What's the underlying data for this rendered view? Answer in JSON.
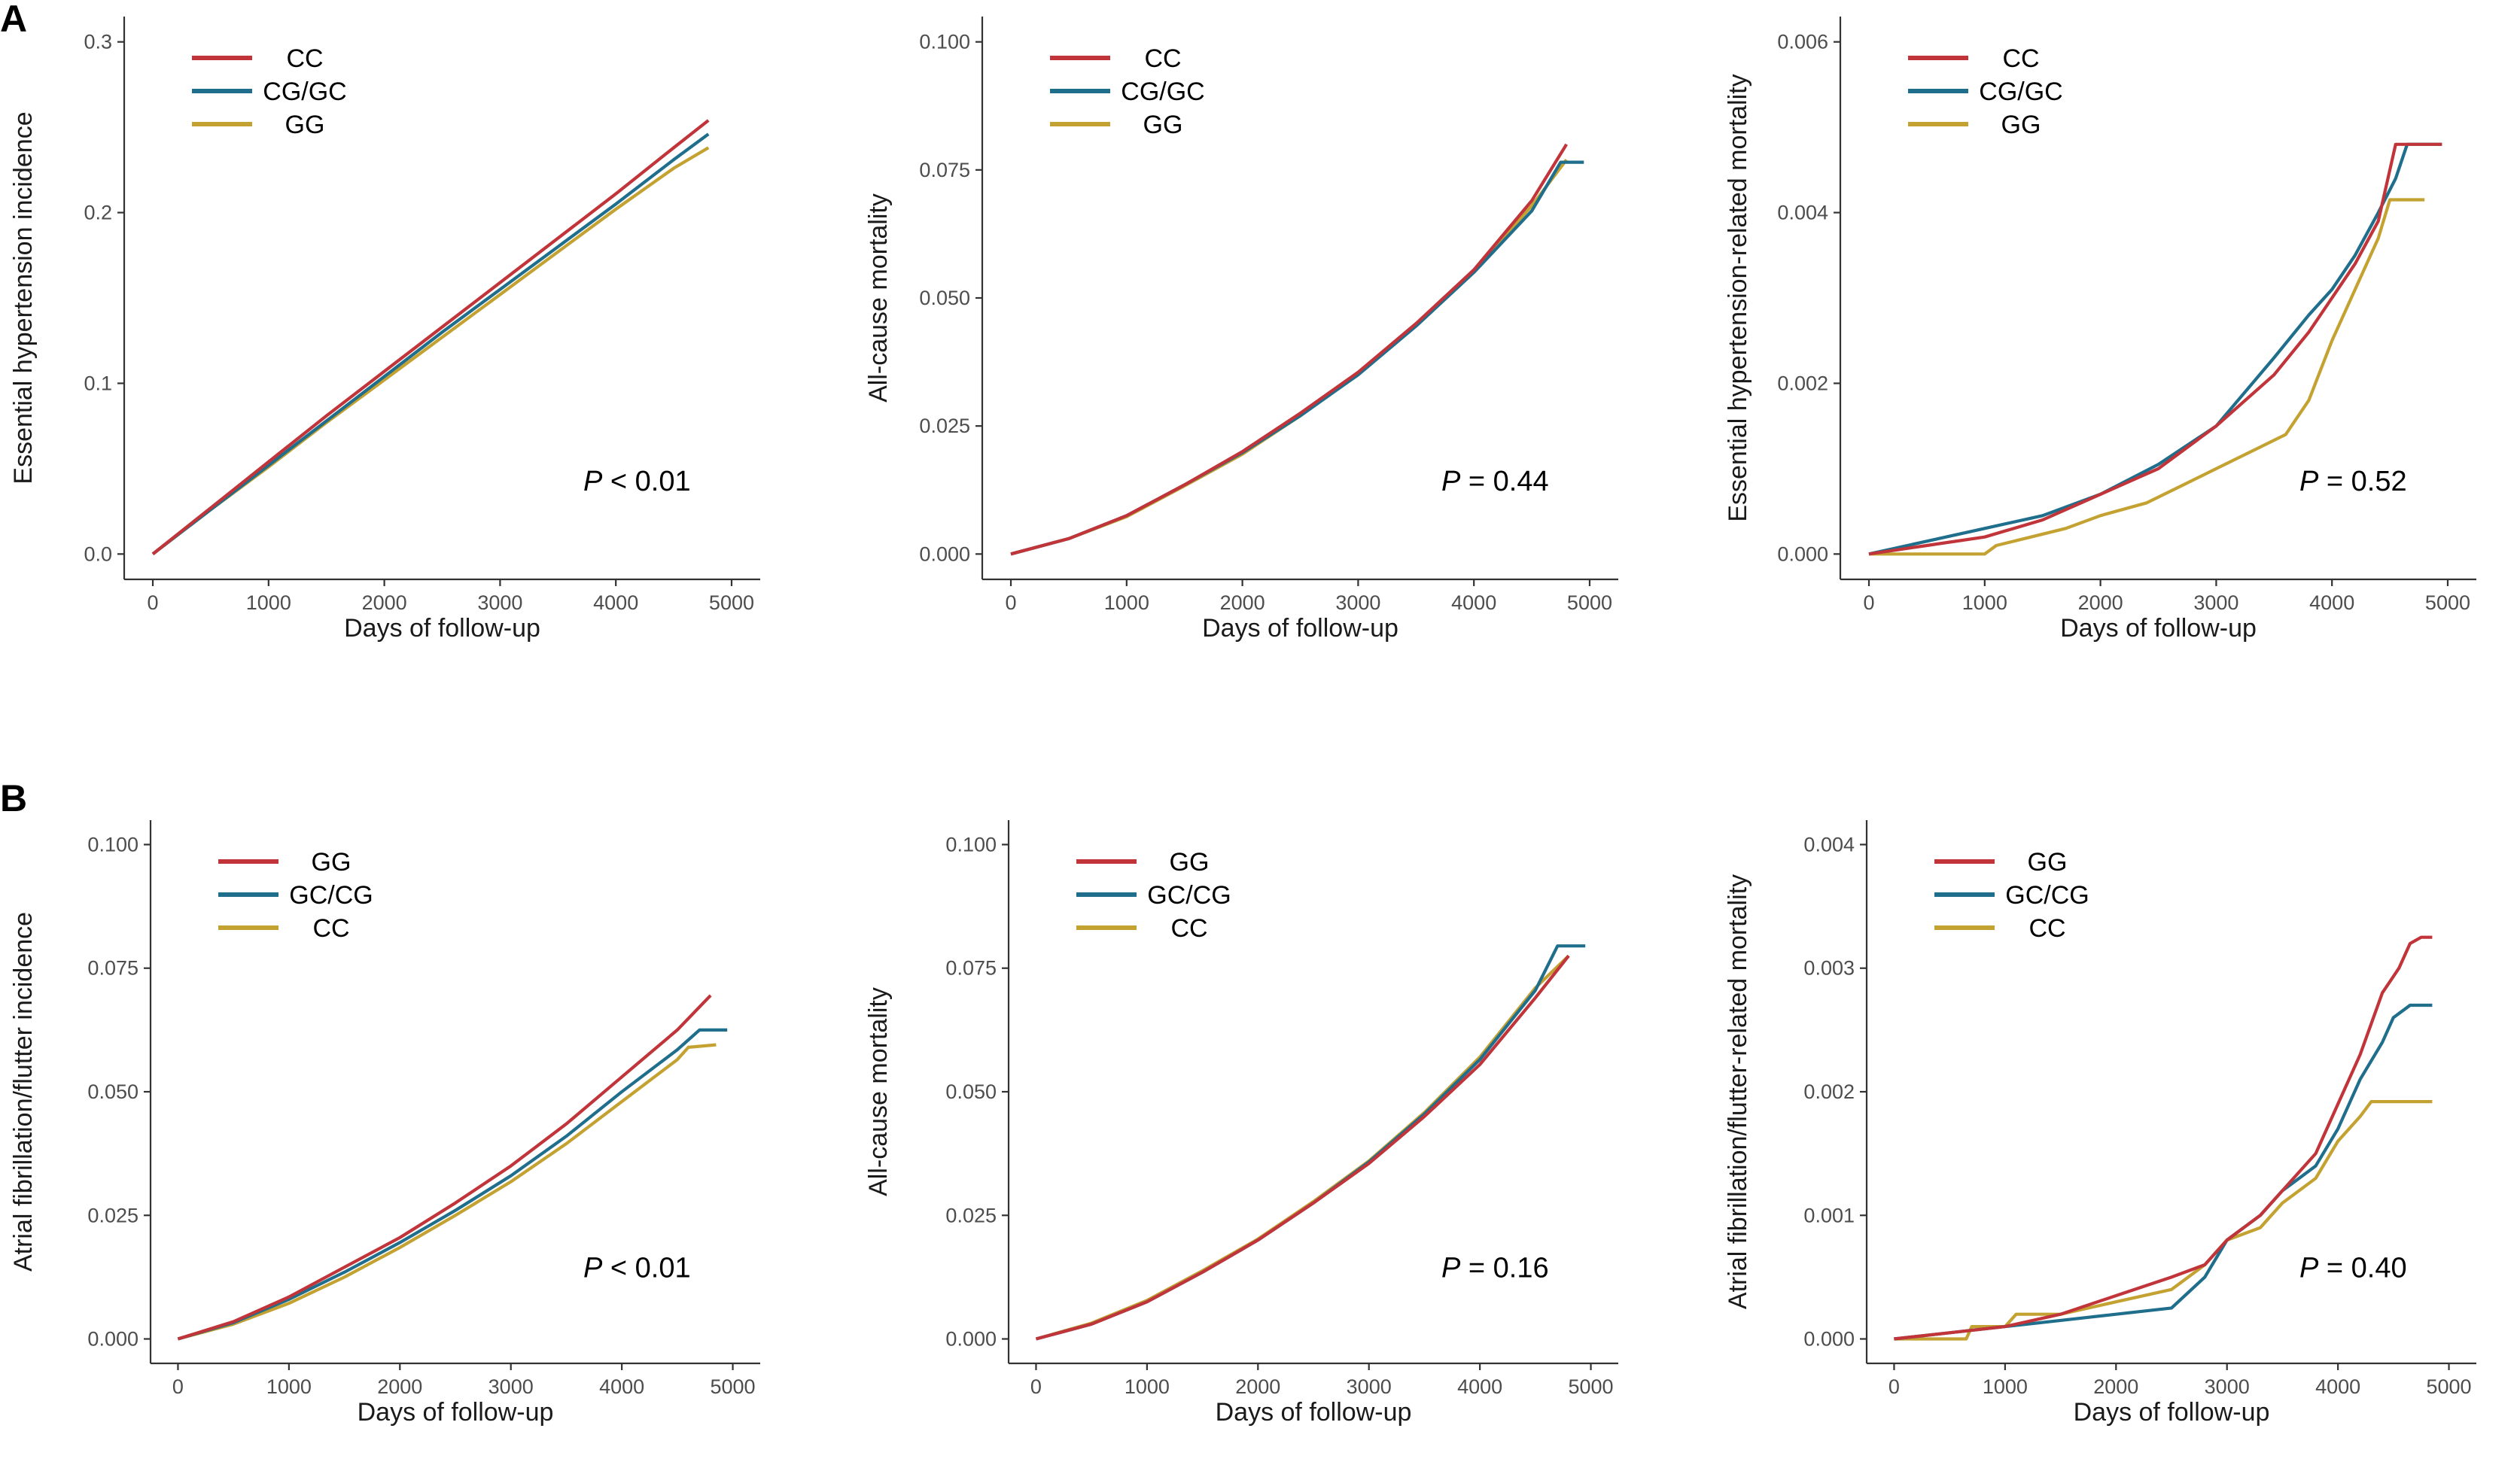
{
  "panel_labels": [
    "A",
    "B"
  ],
  "chart_data": [
    {
      "type": "line",
      "panel": "A",
      "xlabel": "Days of follow-up",
      "ylabel": "Essential hypertension incidence",
      "xlim": [
        0,
        5000
      ],
      "ylim": [
        0,
        0.3
      ],
      "xticks": [
        0,
        1000,
        2000,
        3000,
        4000,
        5000
      ],
      "xtick_labels": [
        "0",
        "1000",
        "2000",
        "3000",
        "4000",
        "5000"
      ],
      "yticks": [
        0,
        0.1,
        0.2,
        0.3
      ],
      "ytick_labels": [
        "0.0",
        "0.1",
        "0.2",
        "0.3"
      ],
      "p_label": "P",
      "p_text": " < 0.01",
      "legend": [
        "CC",
        "CG/GC",
        "GG"
      ],
      "series": [
        {
          "name": "CC",
          "color": "#c0343a",
          "x": [
            0,
            500,
            1000,
            1500,
            2000,
            2500,
            3000,
            3500,
            4000,
            4500,
            4800
          ],
          "y": [
            0.0,
            0.027,
            0.054,
            0.081,
            0.107,
            0.133,
            0.159,
            0.185,
            0.211,
            0.238,
            0.254
          ]
        },
        {
          "name": "CG/GC",
          "color": "#1f6e8c",
          "x": [
            0,
            500,
            1000,
            1500,
            2000,
            2500,
            3000,
            3500,
            4000,
            4500,
            4800
          ],
          "y": [
            0.0,
            0.026,
            0.052,
            0.078,
            0.104,
            0.13,
            0.155,
            0.18,
            0.205,
            0.231,
            0.246
          ]
        },
        {
          "name": "GG",
          "color": "#c4a232",
          "x": [
            0,
            500,
            1000,
            1500,
            2000,
            2500,
            3000,
            3500,
            4000,
            4500,
            4800
          ],
          "y": [
            0.0,
            0.026,
            0.051,
            0.077,
            0.102,
            0.127,
            0.152,
            0.177,
            0.202,
            0.226,
            0.238
          ]
        }
      ]
    },
    {
      "type": "line",
      "panel": "A",
      "xlabel": "Days of follow-up",
      "ylabel": "All-cause mortality",
      "xlim": [
        0,
        5000
      ],
      "ylim": [
        0,
        0.1
      ],
      "xticks": [
        0,
        1000,
        2000,
        3000,
        4000,
        5000
      ],
      "xtick_labels": [
        "0",
        "1000",
        "2000",
        "3000",
        "4000",
        "5000"
      ],
      "yticks": [
        0,
        0.025,
        0.05,
        0.075,
        0.1
      ],
      "ytick_labels": [
        "0.000",
        "0.025",
        "0.050",
        "0.075",
        "0.100"
      ],
      "p_label": "P",
      "p_text": " = 0.44",
      "legend": [
        "CC",
        "CG/GC",
        "GG"
      ],
      "series": [
        {
          "name": "CC",
          "color": "#c0343a",
          "x": [
            0,
            500,
            1000,
            1500,
            2000,
            2500,
            3000,
            3500,
            4000,
            4500,
            4800
          ],
          "y": [
            0.0,
            0.003,
            0.0075,
            0.0135,
            0.02,
            0.0275,
            0.0355,
            0.045,
            0.0555,
            0.069,
            0.08
          ]
        },
        {
          "name": "CG/GC",
          "color": "#1f6e8c",
          "x": [
            0,
            500,
            1000,
            1500,
            2000,
            2500,
            3000,
            3500,
            4000,
            4500,
            4750,
            4950
          ],
          "y": [
            0.0,
            0.003,
            0.0075,
            0.0135,
            0.0198,
            0.027,
            0.035,
            0.0445,
            0.055,
            0.067,
            0.0765,
            0.0765
          ]
        },
        {
          "name": "GG",
          "color": "#c4a232",
          "x": [
            0,
            500,
            1000,
            1500,
            2000,
            2500,
            3000,
            3500,
            4000,
            4500,
            4800
          ],
          "y": [
            0.0,
            0.003,
            0.0073,
            0.0133,
            0.0195,
            0.027,
            0.0352,
            0.0448,
            0.0552,
            0.068,
            0.077
          ]
        }
      ]
    },
    {
      "type": "line",
      "panel": "A",
      "xlabel": "Days of follow-up",
      "ylabel": "Essential hypertension-related mortality",
      "xlim": [
        0,
        5000
      ],
      "ylim": [
        0,
        0.006
      ],
      "xticks": [
        0,
        1000,
        2000,
        3000,
        4000,
        5000
      ],
      "xtick_labels": [
        "0",
        "1000",
        "2000",
        "3000",
        "4000",
        "5000"
      ],
      "yticks": [
        0,
        0.002,
        0.004,
        0.006
      ],
      "ytick_labels": [
        "0.000",
        "0.002",
        "0.004",
        "0.006"
      ],
      "p_label": "P",
      "p_text": " = 0.52",
      "legend": [
        "CC",
        "CG/GC",
        "GG"
      ],
      "series": [
        {
          "name": "CC",
          "color": "#c0343a",
          "x": [
            0,
            500,
            1000,
            1500,
            2000,
            2500,
            3000,
            3500,
            3800,
            4000,
            4200,
            4400,
            4550,
            4650,
            4950
          ],
          "y": [
            0.0,
            0.0001,
            0.0002,
            0.0004,
            0.0007,
            0.001,
            0.0015,
            0.0021,
            0.0026,
            0.003,
            0.0034,
            0.0039,
            0.0048,
            0.0048,
            0.0048
          ]
        },
        {
          "name": "CG/GC",
          "color": "#1f6e8c",
          "x": [
            0,
            500,
            1000,
            1500,
            2000,
            2500,
            3000,
            3500,
            3800,
            4000,
            4200,
            4400,
            4550,
            4650,
            4950
          ],
          "y": [
            0.0,
            0.00015,
            0.0003,
            0.00045,
            0.0007,
            0.00105,
            0.0015,
            0.0023,
            0.0028,
            0.0031,
            0.0035,
            0.004,
            0.0044,
            0.0048,
            0.0048
          ]
        },
        {
          "name": "GG",
          "color": "#c4a232",
          "x": [
            0,
            1000,
            1100,
            1400,
            1700,
            2000,
            2400,
            2700,
            3000,
            3300,
            3600,
            3800,
            4000,
            4200,
            4400,
            4500,
            4800
          ],
          "y": [
            0.0,
            0.0,
            0.0001,
            0.0002,
            0.0003,
            0.00045,
            0.0006,
            0.0008,
            0.001,
            0.0012,
            0.0014,
            0.0018,
            0.0025,
            0.0031,
            0.0037,
            0.00415,
            0.00415
          ]
        }
      ]
    },
    {
      "type": "line",
      "panel": "B",
      "xlabel": "Days of follow-up",
      "ylabel": "Atrial fibrillation/flutter incidence",
      "xlim": [
        0,
        5000
      ],
      "ylim": [
        0,
        0.1
      ],
      "xticks": [
        0,
        1000,
        2000,
        3000,
        4000,
        5000
      ],
      "xtick_labels": [
        "0",
        "1000",
        "2000",
        "3000",
        "4000",
        "5000"
      ],
      "yticks": [
        0,
        0.025,
        0.05,
        0.075,
        0.1
      ],
      "ytick_labels": [
        "0.000",
        "0.025",
        "0.050",
        "0.075",
        "0.100"
      ],
      "p_label": "P",
      "p_text": " < 0.01",
      "legend": [
        "GG",
        "GC/CG",
        "CC"
      ],
      "series": [
        {
          "name": "GG",
          "color": "#c0343a",
          "x": [
            0,
            500,
            1000,
            1500,
            2000,
            2500,
            3000,
            3500,
            4000,
            4500,
            4800
          ],
          "y": [
            0.0,
            0.0035,
            0.0085,
            0.0145,
            0.0205,
            0.0275,
            0.035,
            0.0435,
            0.053,
            0.0625,
            0.0695
          ]
        },
        {
          "name": "GC/CG",
          "color": "#1f6e8c",
          "x": [
            0,
            500,
            1000,
            1500,
            2000,
            2500,
            3000,
            3500,
            4000,
            4500,
            4700,
            4950
          ],
          "y": [
            0.0,
            0.0033,
            0.008,
            0.0135,
            0.0195,
            0.026,
            0.033,
            0.041,
            0.05,
            0.0585,
            0.0625,
            0.0625
          ]
        },
        {
          "name": "CC",
          "color": "#c4a232",
          "x": [
            0,
            500,
            1000,
            1500,
            2000,
            2500,
            3000,
            3500,
            4000,
            4500,
            4600,
            4850
          ],
          "y": [
            0.0,
            0.003,
            0.0072,
            0.0125,
            0.0185,
            0.025,
            0.0318,
            0.0395,
            0.048,
            0.0565,
            0.059,
            0.0595
          ]
        }
      ]
    },
    {
      "type": "line",
      "panel": "B",
      "xlabel": "Days of follow-up",
      "ylabel": "All-cause mortality",
      "xlim": [
        0,
        5000
      ],
      "ylim": [
        0,
        0.1
      ],
      "xticks": [
        0,
        1000,
        2000,
        3000,
        4000,
        5000
      ],
      "xtick_labels": [
        "0",
        "1000",
        "2000",
        "3000",
        "4000",
        "5000"
      ],
      "yticks": [
        0,
        0.025,
        0.05,
        0.075,
        0.1
      ],
      "ytick_labels": [
        "0.000",
        "0.025",
        "0.050",
        "0.075",
        "0.100"
      ],
      "p_label": "P",
      "p_text": " = 0.16",
      "legend": [
        "GG",
        "GC/CG",
        "CC"
      ],
      "series": [
        {
          "name": "GG",
          "color": "#c0343a",
          "x": [
            0,
            500,
            1000,
            1500,
            2000,
            2500,
            3000,
            3500,
            4000,
            4500,
            4800
          ],
          "y": [
            0.0,
            0.003,
            0.0075,
            0.0135,
            0.02,
            0.0275,
            0.0355,
            0.045,
            0.0555,
            0.069,
            0.0775
          ]
        },
        {
          "name": "GC/CG",
          "color": "#1f6e8c",
          "x": [
            0,
            500,
            1000,
            1500,
            2000,
            2500,
            3000,
            3500,
            4000,
            4500,
            4700,
            4950
          ],
          "y": [
            0.0,
            0.003,
            0.0075,
            0.0135,
            0.02,
            0.0275,
            0.0358,
            0.0455,
            0.0565,
            0.0705,
            0.0795,
            0.0795
          ]
        },
        {
          "name": "CC",
          "color": "#c4a232",
          "x": [
            0,
            500,
            1000,
            1500,
            2000,
            2500,
            3000,
            3500,
            4000,
            4500,
            4800
          ],
          "y": [
            0.0,
            0.0032,
            0.0078,
            0.0138,
            0.0202,
            0.0278,
            0.036,
            0.0458,
            0.057,
            0.071,
            0.0775
          ]
        }
      ]
    },
    {
      "type": "line",
      "panel": "B",
      "xlabel": "Days of follow-up",
      "ylabel": "Atrial fibrillation/flutter-related mortality",
      "xlim": [
        0,
        5000
      ],
      "ylim": [
        0,
        0.004
      ],
      "xticks": [
        0,
        1000,
        2000,
        3000,
        4000,
        5000
      ],
      "xtick_labels": [
        "0",
        "1000",
        "2000",
        "3000",
        "4000",
        "5000"
      ],
      "yticks": [
        0,
        0.001,
        0.002,
        0.003,
        0.004
      ],
      "ytick_labels": [
        "0.000",
        "0.001",
        "0.002",
        "0.003",
        "0.004"
      ],
      "p_label": "P",
      "p_text": " = 0.40",
      "legend": [
        "GG",
        "GC/CG",
        "CC"
      ],
      "series": [
        {
          "name": "GG",
          "color": "#c0343a",
          "x": [
            0,
            500,
            1000,
            1500,
            2000,
            2500,
            2800,
            3000,
            3300,
            3500,
            3800,
            4000,
            4200,
            4400,
            4550,
            4650,
            4750,
            4850
          ],
          "y": [
            0.0,
            5e-05,
            0.0001,
            0.0002,
            0.00035,
            0.0005,
            0.0006,
            0.0008,
            0.001,
            0.0012,
            0.0015,
            0.0019,
            0.0023,
            0.0028,
            0.003,
            0.0032,
            0.00325,
            0.00325
          ]
        },
        {
          "name": "GC/CG",
          "color": "#1f6e8c",
          "x": [
            0,
            500,
            1000,
            1500,
            2000,
            2500,
            2800,
            3000,
            3300,
            3500,
            3800,
            4000,
            4200,
            4400,
            4500,
            4650,
            4850
          ],
          "y": [
            0.0,
            5e-05,
            0.0001,
            0.00015,
            0.0002,
            0.00025,
            0.0005,
            0.0008,
            0.001,
            0.0012,
            0.0014,
            0.0017,
            0.0021,
            0.0024,
            0.0026,
            0.0027,
            0.0027
          ]
        },
        {
          "name": "CC",
          "color": "#c4a232",
          "x": [
            0,
            650,
            700,
            1000,
            1100,
            1500,
            2000,
            2500,
            2800,
            3000,
            3300,
            3500,
            3800,
            4000,
            4200,
            4300,
            4500,
            4850
          ],
          "y": [
            0.0,
            0.0,
            0.0001,
            0.0001,
            0.0002,
            0.0002,
            0.0003,
            0.0004,
            0.0006,
            0.0008,
            0.0009,
            0.0011,
            0.0013,
            0.0016,
            0.0018,
            0.00192,
            0.00192,
            0.00192
          ]
        }
      ]
    }
  ]
}
